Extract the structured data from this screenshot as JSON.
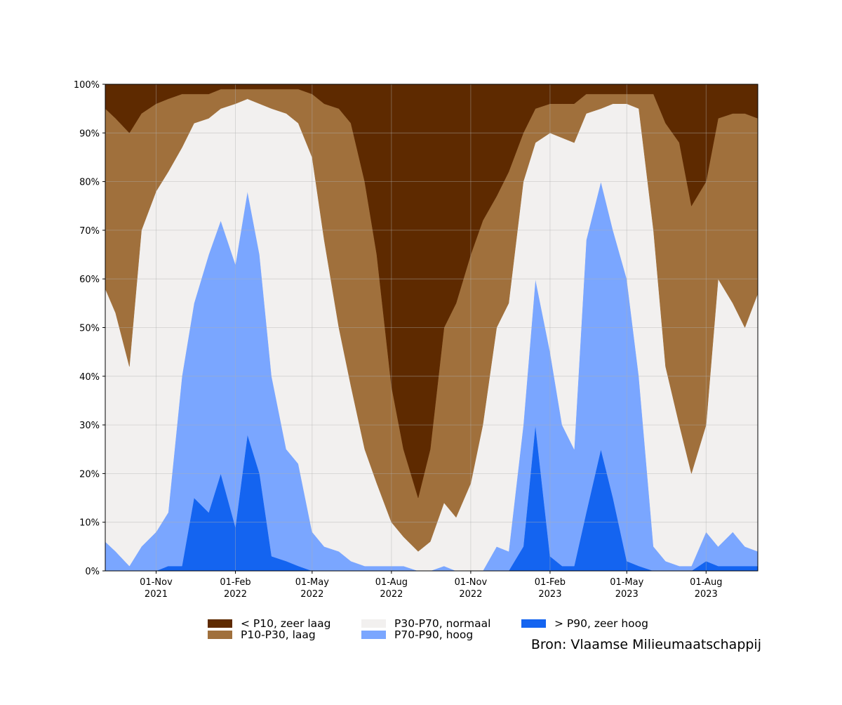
{
  "chart_data": {
    "type": "stacked-area",
    "source": "Bron: Vlaamse Milieumaatschappij",
    "x": [
      "2021-09-03",
      "2021-09-15",
      "2021-10-01",
      "2021-10-15",
      "2021-11-01",
      "2021-11-15",
      "2021-12-01",
      "2021-12-15",
      "2022-01-01",
      "2022-01-15",
      "2022-02-01",
      "2022-02-15",
      "2022-03-01",
      "2022-03-15",
      "2022-04-01",
      "2022-04-15",
      "2022-05-01",
      "2022-05-15",
      "2022-06-01",
      "2022-06-15",
      "2022-07-01",
      "2022-07-15",
      "2022-08-01",
      "2022-08-15",
      "2022-09-01",
      "2022-09-15",
      "2022-10-01",
      "2022-10-15",
      "2022-11-01",
      "2022-11-15",
      "2022-12-01",
      "2022-12-15",
      "2023-01-01",
      "2023-01-15",
      "2023-02-01",
      "2023-02-15",
      "2023-03-01",
      "2023-03-15",
      "2023-04-01",
      "2023-04-15",
      "2023-05-01",
      "2023-05-15",
      "2023-06-01",
      "2023-06-15",
      "2023-07-01",
      "2023-07-15",
      "2023-08-01",
      "2023-08-15",
      "2023-09-01",
      "2023-09-15",
      "2023-09-30"
    ],
    "series": [
      {
        "name": "> P90, zeer hoog",
        "color": "#1464f0",
        "values": [
          0,
          0,
          0,
          0,
          0,
          1,
          1,
          15,
          12,
          20,
          9,
          28,
          20,
          3,
          2,
          1,
          0,
          0,
          0,
          0,
          0,
          0,
          0,
          0,
          0,
          0,
          0,
          0,
          0,
          0,
          0,
          0,
          5,
          30,
          3,
          1,
          1,
          12,
          25,
          15,
          2,
          1,
          0,
          0,
          0,
          0,
          2,
          1,
          1,
          1,
          1
        ]
      },
      {
        "name": "P70-P90, hoog",
        "color": "#7aa6ff",
        "values": [
          6,
          4,
          1,
          5,
          8,
          11,
          39,
          40,
          53,
          52,
          54,
          50,
          45,
          37,
          23,
          21,
          8,
          5,
          4,
          2,
          1,
          1,
          1,
          1,
          0,
          0,
          1,
          0,
          0,
          0,
          5,
          4,
          25,
          30,
          42,
          29,
          24,
          56,
          55,
          55,
          58,
          39,
          5,
          2,
          1,
          1,
          6,
          4,
          7,
          4,
          3
        ]
      },
      {
        "name": "P30-P70, normaal",
        "color": "#f2f0ef",
        "values": [
          52,
          49,
          41,
          65,
          70,
          70,
          47,
          37,
          28,
          23,
          33,
          19,
          31,
          55,
          69,
          70,
          77,
          63,
          46,
          36,
          24,
          17,
          9,
          6,
          4,
          6,
          13,
          11,
          18,
          30,
          45,
          51,
          50,
          28,
          45,
          59,
          63,
          26,
          15,
          26,
          36,
          55,
          65,
          40,
          29,
          19,
          22,
          55,
          47,
          45,
          53
        ]
      },
      {
        "name": "P10-P30, laag",
        "color": "#a0703c",
        "values": [
          37,
          40,
          48,
          24,
          18,
          15,
          11,
          6,
          5,
          4,
          3,
          2,
          3,
          4,
          5,
          7,
          13,
          28,
          45,
          54,
          55,
          47,
          28,
          18,
          11,
          19,
          36,
          44,
          47,
          42,
          27,
          27,
          10,
          7,
          6,
          7,
          8,
          4,
          3,
          2,
          2,
          3,
          28,
          50,
          58,
          55,
          50,
          33,
          39,
          44,
          36
        ]
      },
      {
        "name": "< P10, zeer laag",
        "color": "#5e2a00",
        "values": [
          5,
          7,
          10,
          6,
          4,
          3,
          2,
          2,
          2,
          1,
          1,
          1,
          1,
          1,
          1,
          1,
          2,
          4,
          5,
          8,
          20,
          35,
          62,
          75,
          85,
          75,
          50,
          45,
          35,
          28,
          23,
          18,
          10,
          5,
          4,
          4,
          4,
          2,
          2,
          2,
          2,
          2,
          2,
          8,
          12,
          25,
          20,
          7,
          6,
          6,
          7
        ]
      }
    ],
    "xlim": [
      "2021-09-03",
      "2023-09-30"
    ],
    "xticks": [
      {
        "value": "2021-11-01",
        "label": [
          "01-Nov",
          "2021"
        ]
      },
      {
        "value": "2022-02-01",
        "label": [
          "01-Feb",
          "2022"
        ]
      },
      {
        "value": "2022-05-01",
        "label": [
          "01-May",
          "2022"
        ]
      },
      {
        "value": "2022-08-01",
        "label": [
          "01-Aug",
          "2022"
        ]
      },
      {
        "value": "2022-11-01",
        "label": [
          "01-Nov",
          "2022"
        ]
      },
      {
        "value": "2023-02-01",
        "label": [
          "01-Feb",
          "2023"
        ]
      },
      {
        "value": "2023-05-01",
        "label": [
          "01-May",
          "2023"
        ]
      },
      {
        "value": "2023-08-01",
        "label": [
          "01-Aug",
          "2023"
        ]
      }
    ],
    "ylim": [
      0,
      100
    ],
    "yticks": [
      {
        "value": 0,
        "label": "0%"
      },
      {
        "value": 10,
        "label": "10%"
      },
      {
        "value": 20,
        "label": "20%"
      },
      {
        "value": 30,
        "label": "30%"
      },
      {
        "value": 40,
        "label": "40%"
      },
      {
        "value": 50,
        "label": "50%"
      },
      {
        "value": 60,
        "label": "60%"
      },
      {
        "value": 70,
        "label": "70%"
      },
      {
        "value": 80,
        "label": "80%"
      },
      {
        "value": 90,
        "label": "90%"
      },
      {
        "value": 100,
        "label": "100%"
      }
    ],
    "grid": true
  }
}
